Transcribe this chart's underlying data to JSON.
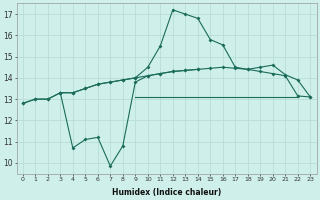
{
  "xlabel": "Humidex (Indice chaleur)",
  "bg_color": "#cff0ea",
  "grid_color": "#b8ddd7",
  "line_color": "#1a6b5a",
  "xlim": [
    -0.5,
    23.5
  ],
  "ylim": [
    9.5,
    17.5
  ],
  "yticks": [
    10,
    11,
    12,
    13,
    14,
    15,
    16,
    17
  ],
  "xticks": [
    0,
    1,
    2,
    3,
    4,
    5,
    6,
    7,
    8,
    9,
    10,
    11,
    12,
    13,
    14,
    15,
    16,
    17,
    18,
    19,
    20,
    21,
    22,
    23
  ],
  "line_top_x": [
    0,
    1,
    2,
    3,
    4,
    5,
    6,
    7,
    8,
    9,
    10,
    11,
    12,
    13,
    14,
    15,
    16,
    17,
    18,
    19,
    20,
    21,
    22,
    23
  ],
  "line_top_y": [
    12.8,
    13.0,
    13.0,
    13.3,
    13.3,
    13.5,
    13.7,
    13.8,
    13.9,
    14.0,
    14.5,
    15.5,
    17.2,
    17.0,
    16.8,
    15.8,
    15.55,
    14.5,
    14.4,
    14.5,
    14.6,
    14.15,
    13.9,
    13.1
  ],
  "line_mid_x": [
    0,
    1,
    2,
    3,
    4,
    5,
    6,
    7,
    8,
    9,
    10,
    11,
    12,
    13,
    14,
    15,
    16,
    17,
    18,
    19,
    20,
    21,
    22,
    23
  ],
  "line_mid_y": [
    12.8,
    13.0,
    13.0,
    13.3,
    13.3,
    13.5,
    13.7,
    13.8,
    13.9,
    14.0,
    14.1,
    14.2,
    14.3,
    14.35,
    14.4,
    14.45,
    14.5,
    14.45,
    14.4,
    14.3,
    14.2,
    14.1,
    13.15,
    13.1
  ],
  "line_bot_x": [
    3,
    4,
    5,
    6,
    7,
    8,
    9,
    10,
    11,
    12,
    13,
    14
  ],
  "line_bot_y": [
    13.3,
    10.7,
    11.1,
    11.2,
    9.85,
    10.8,
    13.8,
    14.1,
    14.2,
    14.3,
    14.35,
    14.4
  ]
}
